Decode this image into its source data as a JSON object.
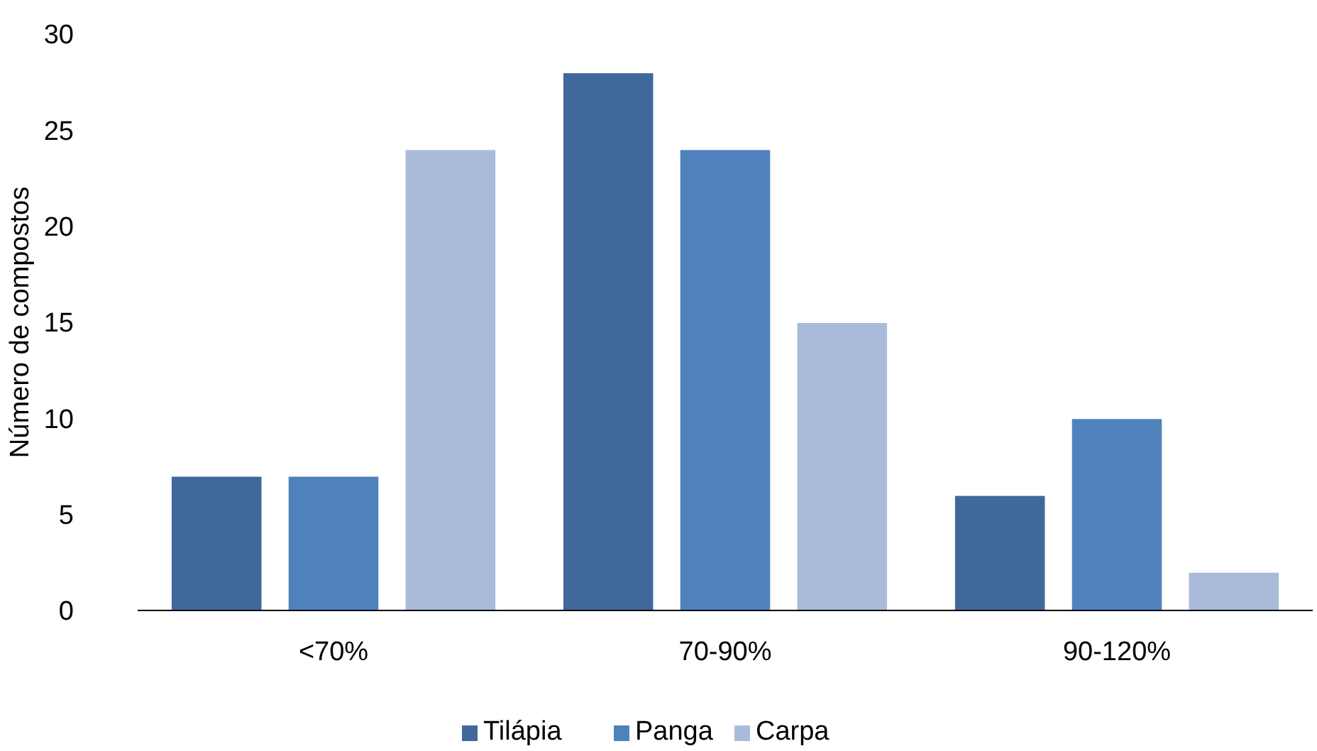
{
  "chart_data": {
    "type": "bar",
    "ylabel": "Número de compostos",
    "categories": [
      "<70%",
      "70-90%",
      "90-120%"
    ],
    "series": [
      {
        "name": "Tilápia",
        "color": "#41689b",
        "values": [
          7,
          28,
          6
        ]
      },
      {
        "name": "Panga",
        "color": "#4f81bd",
        "values": [
          7,
          24,
          10
        ]
      },
      {
        "name": "Carpa",
        "color": "#a9bbd9",
        "values": [
          24,
          15,
          2
        ]
      }
    ],
    "ylim": [
      0,
      30
    ],
    "yticks": [
      0,
      5,
      10,
      15,
      20,
      25,
      30
    ],
    "grid": false,
    "legend": "bottom"
  }
}
